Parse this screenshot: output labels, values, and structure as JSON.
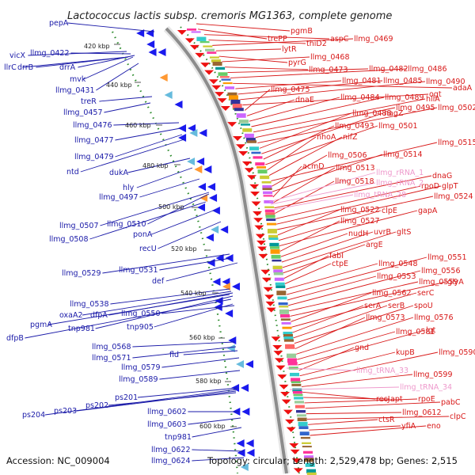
{
  "title": "Lactococcus lactis subsp. cremoris MG1363, complete genome",
  "accession": "Accession: NC_009004",
  "topology": "Topology: circular; Length: 2,529,478 bp; Genes: 2,515",
  "colors": {
    "forward_label": "#1a1aa8",
    "reverse_label": "#d81818",
    "rna_label": "#ee99cc",
    "backbone": "#8c8c8c",
    "gc_dots": "#2a8a2a"
  },
  "ticks": [
    "420 kbp",
    "440 kbp",
    "460 kbp",
    "480 kbp",
    "500 kbp",
    "520 kbp",
    "540 kbp",
    "560 kbp",
    "580 kbp",
    "600 kbp"
  ],
  "left_labels": [
    "pepA",
    "vicX",
    "llmg_0422",
    "llrC",
    "drrB",
    "drrA",
    "mvk",
    "llmg_0431",
    "treR",
    "llmg_0457",
    "llmg_0476",
    "llmg_0477",
    "llmg_0479",
    "ntd",
    "dukA",
    "hly",
    "llmg_0497",
    "llmg_0507",
    "llmg_0510",
    "llmg_0508",
    "ponA",
    "recU",
    "llmg_0529",
    "llmg_0531",
    "def",
    "llmg_0538",
    "oxaA2",
    "dfpA",
    "pgmA",
    "tnp981",
    "llmg_0550",
    "dfpB",
    "tnp905",
    "llmg_0568",
    "llmg_0571",
    "fld",
    "llmg_0579",
    "llmg_0589",
    "ps201",
    "ps204",
    "ps203",
    "ps202",
    "llmg_0602",
    "llmg_0603",
    "tnp981",
    "llmg_0622",
    "llmg_0624"
  ],
  "right_labels": [
    "pgmB",
    "trePP",
    "aspC",
    "thiD2",
    "llmg_0469",
    "lytR",
    "pyrG",
    "llmg_0468",
    "llmg_0473",
    "llmg_0482",
    "llmg_0486",
    "adaA",
    "llmg_0481",
    "llmg_0485",
    "llmg_0490",
    "ogt",
    "llmg_0475",
    "dnaE",
    "llmg_0484",
    "llmg_0489",
    "hllA",
    "llmg_0495",
    "llmg_0502",
    "llmg_0488",
    "nagZ",
    "llmg_0493",
    "llmg_0501",
    "nhoA",
    "nifZ",
    "llmg_0515",
    "llmg_0506",
    "llmg_0514",
    "acmD",
    "llmg_0513",
    "dnaG",
    "llmg_0518",
    "rpoD",
    "glpT",
    "llmg_0524",
    "llmg_0522",
    "clpE",
    "gapA",
    "llmg_0527",
    "nudH",
    "uvrB",
    "gltS",
    "argE",
    "fabI",
    "ctpE",
    "llmg_0548",
    "llmg_0551",
    "llmg_0553",
    "llmg_0556",
    "llmg_0559",
    "glyA",
    "llmg_0562",
    "serC",
    "serA",
    "serB",
    "spoU",
    "llmg_0573",
    "llmg_0576",
    "llmg_0581",
    "lgt",
    "gnd",
    "kupB",
    "llmg_0590",
    "llmg_0599",
    "recJ",
    "apt",
    "rpoE",
    "pabC",
    "llmg_0612",
    "clpC",
    "ctsR",
    "yfiA",
    "eno"
  ],
  "rna_labels": [
    "llmg_rRNA_1",
    "llmg_rRNA_2",
    "llmg_tRNA_28",
    "llmg_tRNA_33",
    "llmg_tRNA_34"
  ]
}
